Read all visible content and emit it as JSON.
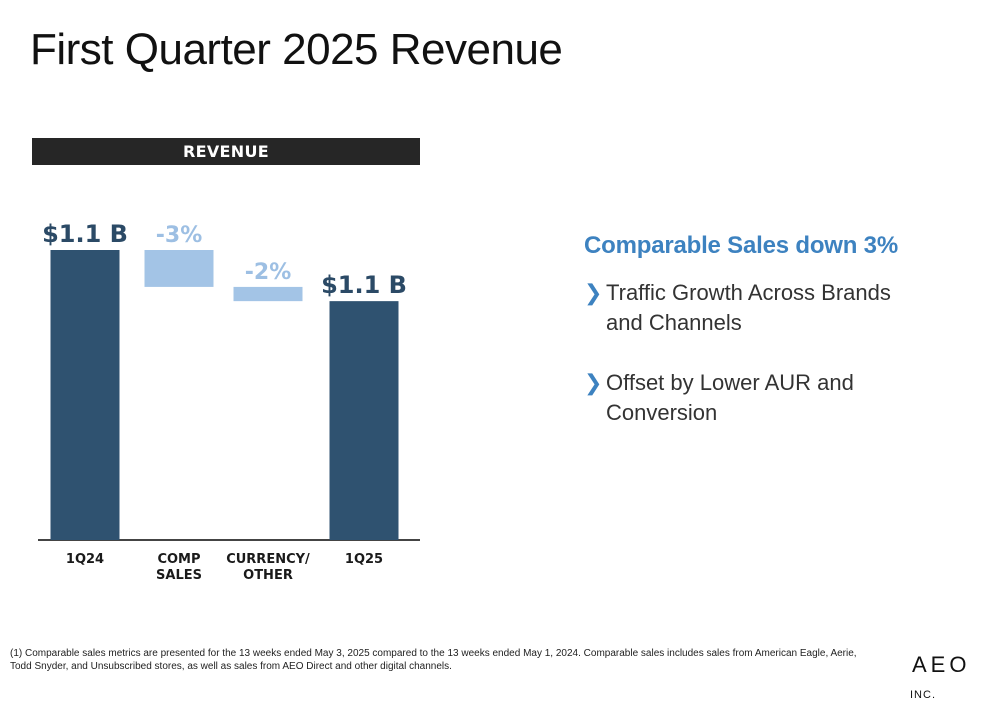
{
  "page": {
    "title": "First Quarter 2025 Revenue"
  },
  "chart_data": {
    "type": "bar",
    "subtype": "waterfall",
    "title": "REVENUE",
    "categories": [
      "1Q24",
      "COMP SALES",
      "CURRENCY/ OTHER",
      "1Q25"
    ],
    "category_lines": [
      [
        "1Q24"
      ],
      [
        "COMP",
        "SALES"
      ],
      [
        "CURRENCY/",
        "OTHER"
      ],
      [
        "1Q25"
      ]
    ],
    "values": [
      1.1,
      -0.03,
      -0.02,
      1.1
    ],
    "data_labels": [
      "$1.1 B",
      "-3%",
      "-2%",
      "$1.1 B"
    ],
    "bar_kinds": [
      "total",
      "change",
      "change",
      "total"
    ],
    "waterfall_bounds": [
      [
        0,
        1.1
      ],
      [
        0.96,
        1.1
      ],
      [
        0.906,
        0.96
      ],
      [
        0,
        0.906
      ]
    ],
    "ylim": [
      0,
      1.1
    ],
    "grid": false,
    "legend": "none",
    "colors": {
      "total": "#2f5270",
      "change": "#a3c4e6",
      "change_label": "#9dbfe3",
      "total_label": "#2b4a66",
      "axis": "#444444"
    }
  },
  "panel": {
    "headline": "Comparable Sales down 3%",
    "bullet_icon": "chevron-right-icon",
    "bullets": [
      "Traffic Growth Across Brands and Channels",
      "Offset by Lower AUR and Conversion"
    ]
  },
  "footnote": "(1) Comparable sales metrics are presented for the 13 weeks ended May 3, 2025 compared to the 13 weeks ended May 1, 2024.  Comparable sales includes sales from American Eagle, Aerie, Todd Snyder, and Unsubscribed stores, as well as sales from AEO Direct and other digital channels.",
  "logo": {
    "text": "AEO",
    "suffix": "INC."
  },
  "colors": {
    "accent": "#3d82c0",
    "banner": "#262626"
  }
}
